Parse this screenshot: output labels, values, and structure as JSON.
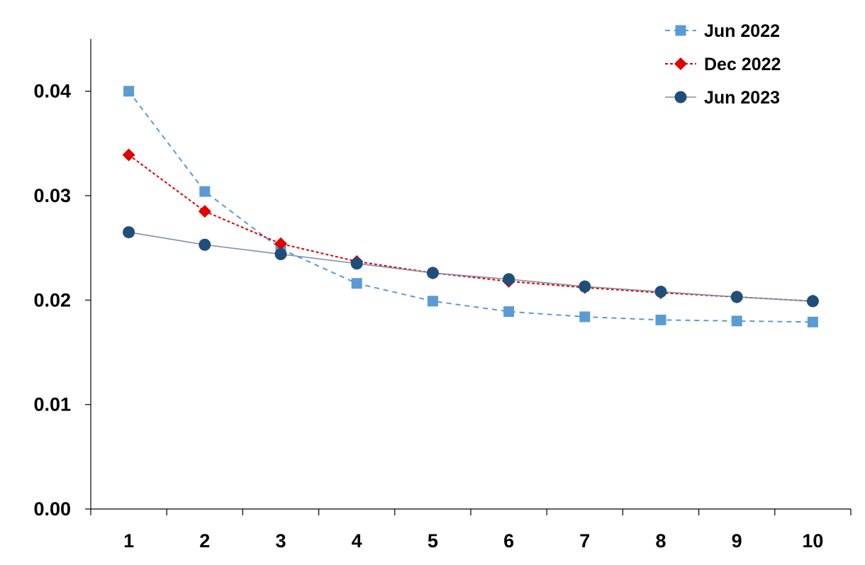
{
  "chart_data": {
    "type": "line",
    "title": "",
    "xlabel": "",
    "ylabel": "",
    "x": [
      1,
      2,
      3,
      4,
      5,
      6,
      7,
      8,
      9,
      10
    ],
    "x_tick_labels": [
      "1",
      "2",
      "3",
      "4",
      "5",
      "6",
      "7",
      "8",
      "9",
      "10"
    ],
    "ylim": [
      0.0,
      0.045
    ],
    "y_ticks": [
      0.0,
      0.01,
      0.02,
      0.03,
      0.04
    ],
    "y_tick_labels": [
      "0.00",
      "0.01",
      "0.02",
      "0.03",
      "0.04"
    ],
    "grid": false,
    "legend_position": "top-right",
    "series": [
      {
        "name": "Jun 2022",
        "color": "#5b9bd5",
        "line_style": "dashed",
        "marker": "square",
        "values": [
          0.04,
          0.0304,
          0.0249,
          0.0216,
          0.0199,
          0.0189,
          0.0184,
          0.0181,
          0.018,
          0.0179
        ]
      },
      {
        "name": "Dec 2022",
        "color": "#e00000",
        "line_style": "dotted",
        "marker": "diamond",
        "values": [
          0.0339,
          0.0285,
          0.0254,
          0.0237,
          0.0226,
          0.0218,
          0.0212,
          0.0207,
          0.0203,
          0.0199
        ]
      },
      {
        "name": "Jun 2023",
        "color": "#1f4e79",
        "line_color": "#7f8fa6",
        "line_style": "solid",
        "marker": "circle",
        "values": [
          0.0265,
          0.0253,
          0.0244,
          0.0235,
          0.0226,
          0.022,
          0.0213,
          0.0208,
          0.0203,
          0.0199
        ]
      }
    ]
  }
}
